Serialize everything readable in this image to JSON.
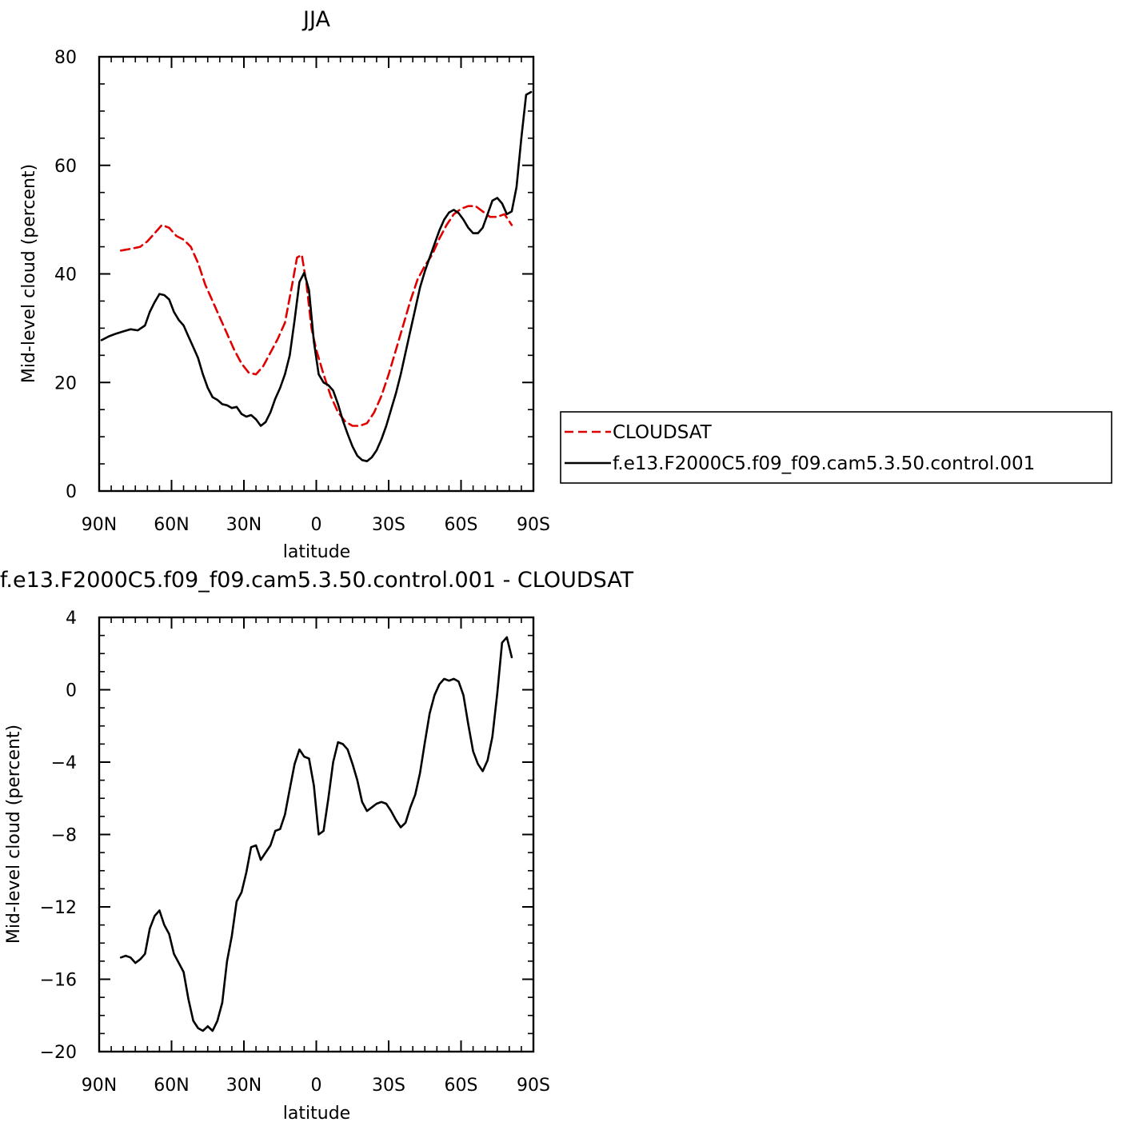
{
  "chart_data": [
    {
      "type": "line",
      "title": "JJA",
      "xlabel": "latitude",
      "ylabel": "Mid-level cloud (percent)",
      "xlim": [
        -90,
        90
      ],
      "ylim": [
        0,
        80
      ],
      "x_ticks": [
        -90,
        -60,
        -30,
        0,
        30,
        60,
        90
      ],
      "x_tick_labels": [
        "90N",
        "60N",
        "30N",
        "0",
        "30S",
        "60S",
        "90S"
      ],
      "y_ticks": [
        0,
        20,
        40,
        60,
        80
      ],
      "y_tick_labels": [
        "0",
        "20",
        "40",
        "60",
        "80"
      ],
      "grid": false,
      "legend_position": "right",
      "series": [
        {
          "name": "CLOUDSAT",
          "color": "#e00000",
          "dash": "dashed",
          "x": [
            -81,
            -76,
            -73,
            -70,
            -67,
            -64,
            -61,
            -58,
            -55,
            -52,
            -49,
            -46,
            -43,
            -40,
            -37,
            -34,
            -31,
            -28,
            -25,
            -22,
            -19,
            -16,
            -13,
            -10,
            -8,
            -6,
            -4,
            -2,
            0,
            3,
            6,
            9,
            12,
            15,
            18,
            21,
            24,
            27,
            30,
            33,
            36,
            39,
            42,
            45,
            48,
            51,
            54,
            57,
            60,
            63,
            66,
            69,
            72,
            75,
            78,
            81
          ],
          "values": [
            44.3,
            44.7,
            45,
            46,
            47.5,
            49,
            48.5,
            47,
            46.3,
            45,
            42,
            38,
            35,
            32,
            29,
            26,
            23.5,
            21.8,
            21.5,
            23,
            25.5,
            28,
            31,
            38,
            43,
            43.5,
            38,
            30,
            26,
            21.5,
            17.5,
            14.5,
            12.8,
            12,
            12,
            12.5,
            14.5,
            17.5,
            21.5,
            26,
            30.5,
            35,
            39,
            41.5,
            43.5,
            46.5,
            49,
            51,
            52,
            52.5,
            52.5,
            51.5,
            50.5,
            50.5,
            51,
            49
          ]
        },
        {
          "name": "f.e13.F2000C5.f09_f09.cam5.3.50.control.001",
          "color": "#000000",
          "dash": "solid",
          "x": [
            -89,
            -86,
            -83,
            -80,
            -77,
            -74,
            -71,
            -69,
            -67,
            -65,
            -63,
            -61,
            -59,
            -57,
            -55,
            -53,
            -51,
            -49,
            -47,
            -45,
            -43,
            -41,
            -39,
            -37,
            -35,
            -33,
            -31,
            -29,
            -27,
            -25,
            -23,
            -21,
            -19,
            -17,
            -15,
            -13,
            -11,
            -9,
            -7,
            -5,
            -3,
            -1,
            1,
            3,
            5,
            7,
            9,
            11,
            13,
            15,
            17,
            19,
            21,
            23,
            25,
            27,
            29,
            31,
            33,
            35,
            37,
            39,
            41,
            43,
            45,
            47,
            49,
            51,
            53,
            55,
            57,
            59,
            61,
            63,
            65,
            67,
            69,
            71,
            73,
            75,
            77,
            79,
            81,
            83,
            85,
            87,
            89
          ],
          "values": [
            27.8,
            28.5,
            29,
            29.4,
            29.8,
            29.6,
            30.5,
            33,
            34.8,
            36.3,
            36.1,
            35.3,
            33,
            31.5,
            30.5,
            28.5,
            26.5,
            24.5,
            21.5,
            19,
            17.3,
            16.8,
            16,
            15.8,
            15.3,
            15.5,
            14.2,
            13.7,
            14,
            13.2,
            12,
            12.7,
            14.5,
            17,
            19,
            21.5,
            25,
            31.5,
            38.5,
            40.2,
            37,
            27.5,
            21.5,
            20,
            19.5,
            18.5,
            16,
            13,
            10.5,
            8.2,
            6.5,
            5.7,
            5.5,
            6.2,
            7.5,
            9.5,
            12,
            15,
            18,
            21.5,
            25.5,
            29.5,
            33.5,
            37.5,
            40.5,
            43,
            45.5,
            48,
            50,
            51.3,
            51.8,
            51.2,
            50,
            48.5,
            47.5,
            47.5,
            48.5,
            51,
            53.5,
            54,
            53,
            51,
            51.5,
            56,
            65,
            73,
            73.5
          ]
        }
      ]
    },
    {
      "type": "line",
      "title": "f.e13.F2000C5.f09_f09.cam5.3.50.control.001 - CLOUDSAT",
      "xlabel": "latitude",
      "ylabel": "Mid-level cloud (percent)",
      "xlim": [
        -90,
        90
      ],
      "ylim": [
        -20,
        4
      ],
      "x_ticks": [
        -90,
        -60,
        -30,
        0,
        30,
        60,
        90
      ],
      "x_tick_labels": [
        "90N",
        "60N",
        "30N",
        "0",
        "30S",
        "60S",
        "90S"
      ],
      "y_ticks": [
        -20,
        -16,
        -12,
        -8,
        -4,
        0,
        4
      ],
      "y_tick_labels": [
        "−20",
        "−16",
        "−12",
        "−8",
        "−4",
        "0",
        "4"
      ],
      "grid": false,
      "series": [
        {
          "color": "#000000",
          "dash": "solid",
          "x": [
            -81,
            -79,
            -77,
            -75,
            -73,
            -71,
            -69,
            -67,
            -65,
            -63,
            -61,
            -59,
            -57,
            -55,
            -53,
            -51,
            -49,
            -47,
            -45,
            -43,
            -41,
            -39,
            -37,
            -35,
            -33,
            -31,
            -29,
            -27,
            -25,
            -23,
            -21,
            -19,
            -17,
            -15,
            -13,
            -11,
            -9,
            -7,
            -5,
            -3,
            -1,
            1,
            3,
            5,
            7,
            9,
            11,
            13,
            15,
            17,
            19,
            21,
            23,
            25,
            27,
            29,
            31,
            33,
            35,
            37,
            39,
            41,
            43,
            45,
            47,
            49,
            51,
            53,
            55,
            57,
            59,
            61,
            63,
            65,
            67,
            69,
            71,
            73,
            75,
            77,
            79,
            81
          ],
          "values": [
            -14.8,
            -14.7,
            -14.8,
            -15.1,
            -14.9,
            -14.6,
            -13.2,
            -12.5,
            -12.2,
            -13,
            -13.5,
            -14.6,
            -15.1,
            -15.6,
            -17.1,
            -18.3,
            -18.7,
            -18.85,
            -18.6,
            -18.85,
            -18.3,
            -17.3,
            -15,
            -13.6,
            -11.7,
            -11.2,
            -10.1,
            -8.7,
            -8.6,
            -9.4,
            -9,
            -8.6,
            -7.8,
            -7.7,
            -6.9,
            -5.5,
            -4.1,
            -3.3,
            -3.7,
            -3.8,
            -5.3,
            -8,
            -7.8,
            -6,
            -4,
            -2.9,
            -3,
            -3.3,
            -4.1,
            -5,
            -6.2,
            -6.7,
            -6.5,
            -6.3,
            -6.2,
            -6.3,
            -6.7,
            -7.2,
            -7.6,
            -7.35,
            -6.5,
            -5.8,
            -4.6,
            -2.9,
            -1.3,
            -0.3,
            0.3,
            0.6,
            0.5,
            0.6,
            0.45,
            -0.3,
            -1.9,
            -3.4,
            -4.1,
            -4.5,
            -3.9,
            -2.6,
            -0.2,
            2.6,
            2.9,
            1.8
          ]
        }
      ]
    }
  ]
}
